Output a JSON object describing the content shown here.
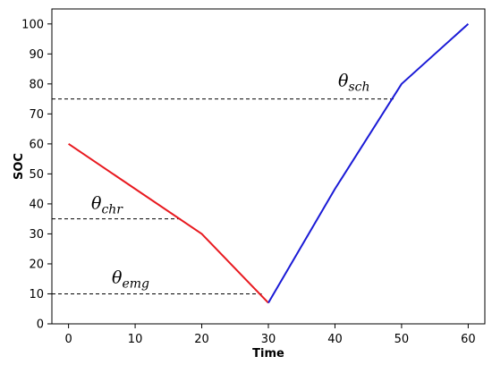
{
  "chart_data": {
    "type": "line",
    "xlabel": "Time",
    "ylabel": "SOC",
    "xlim": [
      -2.5,
      62.5
    ],
    "ylim": [
      0,
      105
    ],
    "x_ticks": [
      0,
      10,
      20,
      30,
      40,
      50,
      60
    ],
    "y_ticks": [
      0,
      10,
      20,
      30,
      40,
      50,
      60,
      70,
      80,
      90,
      100
    ],
    "grid": false,
    "series": [
      {
        "color": "#e8191f",
        "x": [
          0,
          20,
          30
        ],
        "y": [
          60,
          30,
          7
        ]
      },
      {
        "color": "#1a1ad6",
        "x": [
          30,
          40,
          50,
          60
        ],
        "y": [
          7,
          45,
          80,
          100
        ]
      }
    ],
    "thresholds": [
      {
        "symbol": "θ",
        "subscript": "sch",
        "y": 75,
        "x_end": 49
      },
      {
        "symbol": "θ",
        "subscript": "chr",
        "y": 35,
        "x_end": 17
      },
      {
        "symbol": "θ",
        "subscript": "emg",
        "y": 10,
        "x_end": 29
      }
    ]
  }
}
